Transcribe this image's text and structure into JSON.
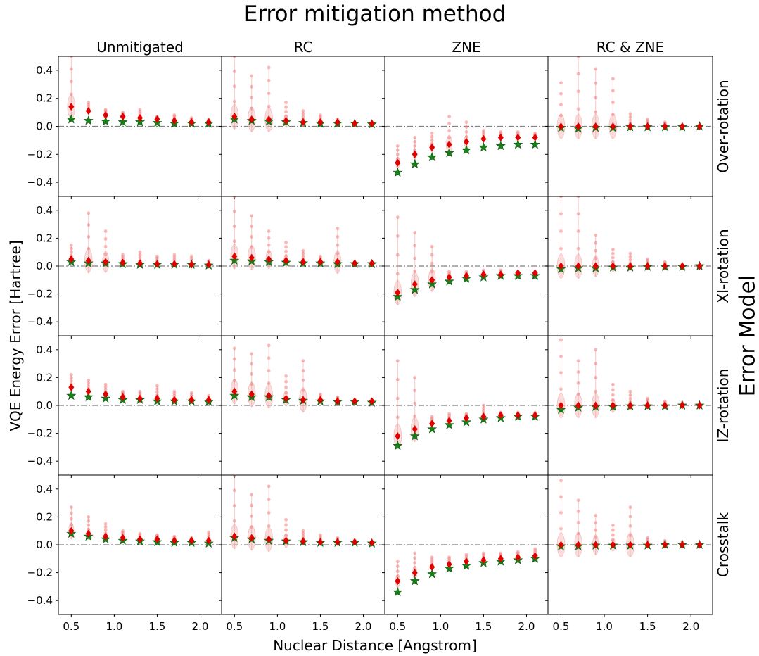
{
  "figure": {
    "title": "Error mitigation method",
    "xlabel": "Nuclear Distance [Angstrom]",
    "ylabel": "VQE Energy Error [Hartree]",
    "row_group_label": "Error Model",
    "columns": [
      "Unmitigated",
      "RC",
      "ZNE",
      "RC & ZNE"
    ],
    "rows": [
      "Over-rotation",
      "XI-rotation",
      "IZ-rotation",
      "Crosstalk"
    ],
    "x_ticks": [
      "0.5",
      "1.0",
      "1.5",
      "2.0"
    ],
    "y_ticks": [
      "0.4",
      "0.2",
      "0.0",
      "−0.2",
      "−0.4"
    ]
  },
  "colors": {
    "mean_marker": "#e00000",
    "exact_marker": "#1a7f1a",
    "samples": "#f07f7f",
    "violin": "#f4c2c2",
    "zero_line": "#808080"
  },
  "chart_data": {
    "type": "scatter",
    "x": [
      0.5,
      0.7,
      0.9,
      1.1,
      1.3,
      1.5,
      1.7,
      1.9,
      2.1
    ],
    "xlim": [
      0.35,
      2.25
    ],
    "ylim": [
      -0.5,
      0.5
    ],
    "grid": false,
    "zero_reference_line": 0.0,
    "panels": [
      {
        "row": "Over-rotation",
        "column": "Unmitigated",
        "mean": [
          0.14,
          0.11,
          0.08,
          0.07,
          0.06,
          0.05,
          0.04,
          0.03,
          0.03
        ],
        "exact": [
          0.05,
          0.04,
          0.035,
          0.03,
          0.03,
          0.025,
          0.02,
          0.02,
          0.02
        ],
        "max": [
          0.5,
          0.17,
          0.12,
          0.1,
          0.12,
          0.07,
          0.08,
          0.06,
          0.05
        ]
      },
      {
        "row": "Over-rotation",
        "column": "RC",
        "mean": [
          0.07,
          0.05,
          0.05,
          0.04,
          0.03,
          0.03,
          0.03,
          0.02,
          0.02
        ],
        "exact": [
          0.05,
          0.04,
          0.035,
          0.03,
          0.025,
          0.02,
          0.02,
          0.02,
          0.015
        ],
        "max": [
          0.5,
          0.36,
          0.42,
          0.17,
          0.11,
          0.08,
          0.05,
          0.03,
          0.02
        ]
      },
      {
        "row": "Over-rotation",
        "column": "ZNE",
        "mean": [
          -0.26,
          -0.2,
          -0.15,
          -0.13,
          -0.11,
          -0.09,
          -0.08,
          -0.08,
          -0.08
        ],
        "exact": [
          -0.33,
          -0.27,
          -0.22,
          -0.19,
          -0.17,
          -0.15,
          -0.14,
          -0.13,
          -0.13
        ],
        "max": [
          -0.14,
          -0.08,
          -0.05,
          0.07,
          0.03,
          -0.03,
          -0.04,
          -0.04,
          -0.05
        ]
      },
      {
        "row": "Over-rotation",
        "column": "RC & ZNE",
        "mean": [
          0.0,
          0.0,
          0.0,
          0.0,
          0.0,
          0.0,
          0.0,
          0.0,
          0.0
        ],
        "exact": [
          -0.01,
          -0.015,
          -0.01,
          -0.01,
          -0.005,
          -0.005,
          -0.005,
          -0.005,
          0.0
        ],
        "max": [
          0.31,
          0.5,
          0.41,
          0.34,
          0.09,
          0.05,
          0.03,
          0.01,
          0.0
        ]
      },
      {
        "row": "XI-rotation",
        "column": "Unmitigated",
        "mean": [
          0.05,
          0.04,
          0.03,
          0.025,
          0.02,
          0.015,
          0.015,
          0.01,
          0.01
        ],
        "exact": [
          0.03,
          0.02,
          0.02,
          0.015,
          0.01,
          0.01,
          0.01,
          0.01,
          0.005
        ],
        "max": [
          0.15,
          0.38,
          0.25,
          0.08,
          0.1,
          0.07,
          0.08,
          0.07,
          0.04
        ]
      },
      {
        "row": "XI-rotation",
        "column": "RC",
        "mean": [
          0.07,
          0.06,
          0.05,
          0.04,
          0.03,
          0.03,
          0.03,
          0.02,
          0.02
        ],
        "exact": [
          0.04,
          0.035,
          0.03,
          0.025,
          0.02,
          0.02,
          0.015,
          0.015,
          0.015
        ],
        "max": [
          0.5,
          0.36,
          0.25,
          0.17,
          0.11,
          0.07,
          0.27,
          0.03,
          0.02
        ]
      },
      {
        "row": "XI-rotation",
        "column": "ZNE",
        "mean": [
          -0.19,
          -0.13,
          -0.1,
          -0.08,
          -0.07,
          -0.06,
          -0.06,
          -0.05,
          -0.05
        ],
        "exact": [
          -0.22,
          -0.17,
          -0.13,
          -0.11,
          -0.09,
          -0.08,
          -0.07,
          -0.07,
          -0.07
        ],
        "max": [
          0.35,
          0.24,
          0.14,
          -0.04,
          -0.04,
          -0.03,
          -0.03,
          -0.04,
          -0.04
        ]
      },
      {
        "row": "XI-rotation",
        "column": "RC & ZNE",
        "mean": [
          0.0,
          0.0,
          0.0,
          0.0,
          0.0,
          0.0,
          0.0,
          0.0,
          0.0
        ],
        "exact": [
          -0.02,
          -0.015,
          -0.015,
          -0.01,
          -0.01,
          -0.005,
          -0.005,
          -0.005,
          0.0
        ],
        "max": [
          0.5,
          0.5,
          0.22,
          0.12,
          0.09,
          0.05,
          0.03,
          0.01,
          0.0
        ]
      },
      {
        "row": "IZ-rotation",
        "column": "Unmitigated",
        "mean": [
          0.13,
          0.1,
          0.08,
          0.06,
          0.05,
          0.05,
          0.04,
          0.04,
          0.04
        ],
        "exact": [
          0.07,
          0.06,
          0.05,
          0.04,
          0.04,
          0.03,
          0.03,
          0.03,
          0.025
        ],
        "max": [
          0.22,
          0.18,
          0.15,
          0.1,
          0.1,
          0.14,
          0.1,
          0.09,
          0.07
        ]
      },
      {
        "row": "IZ-rotation",
        "column": "RC",
        "mean": [
          0.1,
          0.08,
          0.07,
          0.05,
          0.04,
          0.04,
          0.03,
          0.03,
          0.03
        ],
        "exact": [
          0.07,
          0.06,
          0.06,
          0.04,
          0.035,
          0.03,
          0.025,
          0.025,
          0.02
        ],
        "max": [
          0.41,
          0.37,
          0.43,
          0.21,
          0.32,
          0.08,
          0.06,
          0.04,
          0.03
        ]
      },
      {
        "row": "IZ-rotation",
        "column": "ZNE",
        "mean": [
          -0.22,
          -0.17,
          -0.13,
          -0.11,
          -0.09,
          -0.08,
          -0.07,
          -0.07,
          -0.07
        ],
        "exact": [
          -0.29,
          -0.22,
          -0.17,
          -0.14,
          -0.12,
          -0.1,
          -0.09,
          -0.08,
          -0.08
        ],
        "max": [
          0.32,
          0.2,
          -0.08,
          -0.06,
          -0.06,
          0.0,
          -0.05,
          -0.05,
          -0.05
        ]
      },
      {
        "row": "IZ-rotation",
        "column": "RC & ZNE",
        "mean": [
          0.0,
          0.0,
          0.0,
          0.0,
          0.0,
          0.0,
          0.0,
          0.0,
          0.0
        ],
        "exact": [
          -0.03,
          -0.015,
          -0.01,
          -0.01,
          -0.005,
          -0.005,
          -0.005,
          0.0,
          0.0
        ],
        "max": [
          0.47,
          0.32,
          0.4,
          0.15,
          0.1,
          0.05,
          0.03,
          0.02,
          0.0
        ]
      },
      {
        "row": "Crosstalk",
        "column": "Unmitigated",
        "mean": [
          0.1,
          0.08,
          0.06,
          0.05,
          0.04,
          0.04,
          0.03,
          0.03,
          0.03
        ],
        "exact": [
          0.08,
          0.06,
          0.04,
          0.03,
          0.025,
          0.02,
          0.015,
          0.015,
          0.01
        ],
        "max": [
          0.27,
          0.2,
          0.15,
          0.1,
          0.08,
          0.07,
          0.06,
          0.05,
          0.09
        ]
      },
      {
        "row": "Crosstalk",
        "column": "RC",
        "mean": [
          0.06,
          0.05,
          0.04,
          0.03,
          0.025,
          0.02,
          0.02,
          0.02,
          0.015
        ],
        "exact": [
          0.05,
          0.04,
          0.03,
          0.025,
          0.02,
          0.015,
          0.015,
          0.015,
          0.01
        ],
        "max": [
          0.5,
          0.36,
          0.42,
          0.18,
          0.1,
          0.07,
          0.05,
          0.03,
          0.02
        ]
      },
      {
        "row": "Crosstalk",
        "column": "ZNE",
        "mean": [
          -0.26,
          -0.2,
          -0.16,
          -0.14,
          -0.12,
          -0.11,
          -0.1,
          -0.09,
          -0.08
        ],
        "exact": [
          -0.34,
          -0.26,
          -0.21,
          -0.17,
          -0.15,
          -0.13,
          -0.12,
          -0.11,
          -0.1
        ],
        "max": [
          -0.12,
          -0.06,
          -0.09,
          -0.09,
          -0.07,
          -0.06,
          -0.06,
          -0.05,
          -0.03
        ]
      },
      {
        "row": "Crosstalk",
        "column": "RC & ZNE",
        "mean": [
          0.0,
          0.0,
          0.0,
          0.0,
          0.0,
          0.0,
          0.0,
          0.0,
          0.0
        ],
        "exact": [
          -0.01,
          -0.01,
          -0.005,
          -0.005,
          -0.005,
          -0.005,
          0.0,
          0.0,
          0.0
        ],
        "max": [
          0.46,
          0.32,
          0.21,
          0.14,
          0.27,
          0.05,
          0.03,
          0.02,
          0.0
        ]
      }
    ]
  }
}
